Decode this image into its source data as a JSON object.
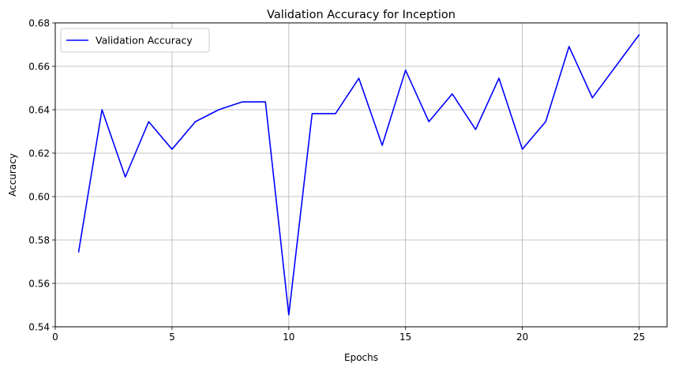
{
  "chart_data": {
    "type": "line",
    "title": "Validation Accuracy for Inception",
    "xlabel": "Epochs",
    "ylabel": "Accuracy",
    "xlim": [
      0,
      26.2
    ],
    "ylim": [
      0.54,
      0.68
    ],
    "xticks": [
      0,
      5,
      10,
      15,
      20,
      25
    ],
    "yticks": [
      0.54,
      0.56,
      0.58,
      0.6,
      0.62,
      0.64,
      0.66,
      0.68
    ],
    "xtick_labels": [
      "0",
      "5",
      "10",
      "15",
      "20",
      "25"
    ],
    "ytick_labels": [
      "0.54",
      "0.56",
      "0.58",
      "0.60",
      "0.62",
      "0.64",
      "0.66",
      "0.68"
    ],
    "grid": true,
    "legend_position": "upper-left",
    "series": [
      {
        "name": "Validation Accuracy",
        "color": "#0000ff",
        "x": [
          1,
          2,
          3,
          4,
          5,
          6,
          7,
          8,
          9,
          10,
          11,
          12,
          13,
          14,
          15,
          16,
          17,
          18,
          19,
          20,
          21,
          22,
          23,
          24,
          25
        ],
        "y": [
          0.5745,
          0.64,
          0.609,
          0.6345,
          0.6218,
          0.6345,
          0.64,
          0.6436,
          0.6436,
          0.5455,
          0.6382,
          0.6382,
          0.6545,
          0.6236,
          0.6582,
          0.6345,
          0.6473,
          0.6309,
          0.6545,
          0.6218,
          0.6345,
          0.6691,
          0.6455,
          0.66,
          0.6745
        ]
      }
    ]
  }
}
